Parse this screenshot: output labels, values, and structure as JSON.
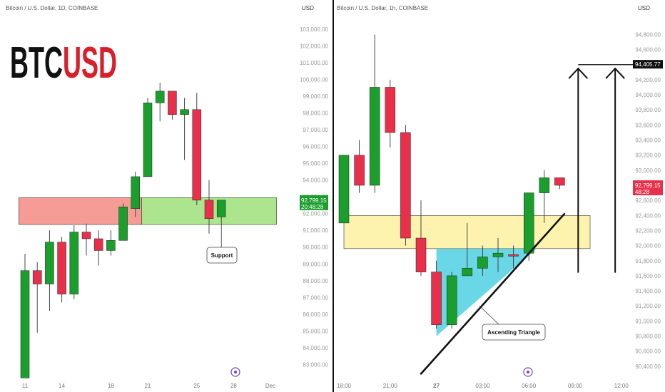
{
  "colors": {
    "up": "#1a9e2c",
    "down": "#e8304a",
    "red_zone": "#f28b82",
    "green_zone": "#9fe07a",
    "yellow_zone": "#fdf0a0",
    "triangle": "#4fd0e0",
    "price_tag": "#e8304a",
    "level_tag": "#111111",
    "axis_text": "#9a9a9a",
    "logo_black": "#111111",
    "logo_red": "#d81f2a",
    "divider": "#111111"
  },
  "logo": {
    "part1": "BTC",
    "part2": "USD"
  },
  "chart_data": [
    {
      "type": "candlestick",
      "title": "Bitcoin / U.S. Dollar, 1D, COINBASE",
      "currency": "USD",
      "ylim": [
        82000,
        103800
      ],
      "y_ticks": [
        83000,
        84000,
        85000,
        86000,
        87000,
        88000,
        89000,
        90000,
        91000,
        92000,
        93000,
        94000,
        95000,
        96000,
        97000,
        98000,
        99000,
        100000,
        101000,
        102000,
        103000
      ],
      "y_tick_labels": [
        "83,000.00",
        "84,000.00",
        "85,000.00",
        "86,000.00",
        "87,000.00",
        "88,000.00",
        "89,000.00",
        "90,000.00",
        "91,000.00",
        "92,000.00",
        "93,000.00",
        "94,000.00",
        "95,000.00",
        "96,000.00",
        "97,000.00",
        "98,000.00",
        "99,000.00",
        "100,000.00",
        "101,000.00",
        "102,000.00",
        "103,000.00"
      ],
      "x_tick_labels": [
        {
          "label": "11",
          "index": 0
        },
        {
          "label": "14",
          "index": 3
        },
        {
          "label": "18",
          "index": 7
        },
        {
          "label": "21",
          "index": 10
        },
        {
          "label": "25",
          "index": 14
        },
        {
          "label": "28",
          "index": 17
        },
        {
          "label": "Dec",
          "index": 20
        }
      ],
      "candles": [
        {
          "o": 82200,
          "h": 89600,
          "l": 82200,
          "c": 88600
        },
        {
          "o": 88600,
          "h": 89100,
          "l": 84900,
          "c": 87800
        },
        {
          "o": 87800,
          "h": 91000,
          "l": 86200,
          "c": 90300
        },
        {
          "o": 90300,
          "h": 90600,
          "l": 86700,
          "c": 87200
        },
        {
          "o": 87200,
          "h": 91300,
          "l": 86900,
          "c": 90900
        },
        {
          "o": 90900,
          "h": 91400,
          "l": 89500,
          "c": 90500
        },
        {
          "o": 90500,
          "h": 91000,
          "l": 88900,
          "c": 89800
        },
        {
          "o": 89800,
          "h": 91000,
          "l": 89500,
          "c": 90400
        },
        {
          "o": 90400,
          "h": 92600,
          "l": 90400,
          "c": 92400
        },
        {
          "o": 92300,
          "h": 94500,
          "l": 91800,
          "c": 94200
        },
        {
          "o": 94200,
          "h": 98900,
          "l": 94200,
          "c": 98600
        },
        {
          "o": 98600,
          "h": 99800,
          "l": 97500,
          "c": 99300
        },
        {
          "o": 99300,
          "h": 99300,
          "l": 97600,
          "c": 97900
        },
        {
          "o": 97900,
          "h": 98900,
          "l": 95200,
          "c": 98200
        },
        {
          "o": 98200,
          "h": 99200,
          "l": 92500,
          "c": 92800
        },
        {
          "o": 92800,
          "h": 94000,
          "l": 90800,
          "c": 91700
        },
        {
          "o": 91800,
          "h": 92800,
          "l": 91600,
          "c": 92800
        }
      ],
      "zones": [
        {
          "name": "red-zone",
          "from_index": -0.5,
          "to_index": 9.5,
          "y_low": 91350,
          "y_high": 92950
        },
        {
          "name": "green-zone",
          "from_index": 9.5,
          "to_index": 20.5,
          "y_low": 91350,
          "y_high": 92950
        }
      ],
      "callout": {
        "text": "Support",
        "points_to": {
          "index": 16,
          "value": 91600
        }
      },
      "price_tag": {
        "value": 92800,
        "line1": "92,799.15",
        "line2": "20:48:28"
      }
    },
    {
      "type": "candlestick",
      "title": "Bitcoin / U.S. Dollar, 1h, COINBASE",
      "currency": "USD",
      "ylim": [
        90200,
        95050
      ],
      "y_ticks": [
        90400,
        90600,
        90800,
        91000,
        91200,
        91400,
        91600,
        91800,
        92000,
        92200,
        92400,
        92600,
        92800,
        93000,
        93200,
        93400,
        93600,
        93800,
        94000,
        94200,
        94400,
        94600,
        94800
      ],
      "y_tick_labels": [
        "90,400.00",
        "90,600.00",
        "90,800.00",
        "91,000.00",
        "91,200.00",
        "91,400.00",
        "91,600.00",
        "91,800.00",
        "92,000.00",
        "92,200.00",
        "92,400.00",
        "92,600.00",
        "92,800.00",
        "93,000.00",
        "93,200.00",
        "93,400.00",
        "93,600.00",
        "93,800.00",
        "94,000.00",
        "94,200.00",
        "94,400.00",
        "94,600.00",
        "94,800.00"
      ],
      "x_tick_labels": [
        {
          "label": "18:00",
          "index": 0
        },
        {
          "label": "21:00",
          "index": 3
        },
        {
          "label": "27",
          "index": 6
        },
        {
          "label": "03:00",
          "index": 9
        },
        {
          "label": "06:00",
          "index": 12
        },
        {
          "label": "09:00",
          "index": 15
        },
        {
          "label": "12:00",
          "index": 18
        }
      ],
      "candles": [
        {
          "o": 92300,
          "h": 93200,
          "l": 92300,
          "c": 93200
        },
        {
          "o": 93200,
          "h": 93400,
          "l": 92700,
          "c": 92800
        },
        {
          "o": 92800,
          "h": 94800,
          "l": 92700,
          "c": 94100
        },
        {
          "o": 94100,
          "h": 94200,
          "l": 93300,
          "c": 93500
        },
        {
          "o": 93500,
          "h": 93600,
          "l": 92000,
          "c": 92100
        },
        {
          "o": 92100,
          "h": 92600,
          "l": 91600,
          "c": 91650
        },
        {
          "o": 91650,
          "h": 91800,
          "l": 90900,
          "c": 90950
        },
        {
          "o": 90950,
          "h": 91650,
          "l": 90900,
          "c": 91600
        },
        {
          "o": 91600,
          "h": 92300,
          "l": 91600,
          "c": 91700
        },
        {
          "o": 91700,
          "h": 92000,
          "l": 91600,
          "c": 91850
        },
        {
          "o": 91850,
          "h": 92100,
          "l": 91650,
          "c": 91900
        },
        {
          "o": 91880,
          "h": 92000,
          "l": 91700,
          "c": 91860
        },
        {
          "o": 91900,
          "h": 92700,
          "l": 91800,
          "c": 92700
        },
        {
          "o": 92700,
          "h": 93000,
          "l": 92300,
          "c": 92900
        },
        {
          "o": 92900,
          "h": 92900,
          "l": 92750,
          "c": 92800
        }
      ],
      "zones": [
        {
          "name": "yellow-zone",
          "from_index": -0.5,
          "to_index": 17.5,
          "y_low": 91960,
          "y_high": 92400
        }
      ],
      "triangle": {
        "polygon": [
          [
            6,
            90800
          ],
          [
            6,
            91960
          ],
          [
            12.5,
            91960
          ]
        ]
      },
      "trendline": {
        "from": {
          "index": 5,
          "value": 90300
        },
        "to": {
          "index": 14.3,
          "value": 92420
        }
      },
      "pattern_label": {
        "text": "Ascending Triangle",
        "points_to": {
          "index": 8.8,
          "value": 91200
        }
      },
      "arrows": [
        {
          "index": 15.2,
          "from_value": 91640,
          "to_value": 94350
        },
        {
          "index": 17.6,
          "from_value": 91640,
          "to_value": 94350
        }
      ],
      "target_line": {
        "value": 94400,
        "from_index": 15.2,
        "to_index": 19.4
      },
      "target_tag": {
        "value": 94405.77,
        "label": "94,405.77"
      },
      "price_tag": {
        "value": 92800,
        "line1": "92,799.15",
        "line2": "48:28"
      }
    }
  ]
}
